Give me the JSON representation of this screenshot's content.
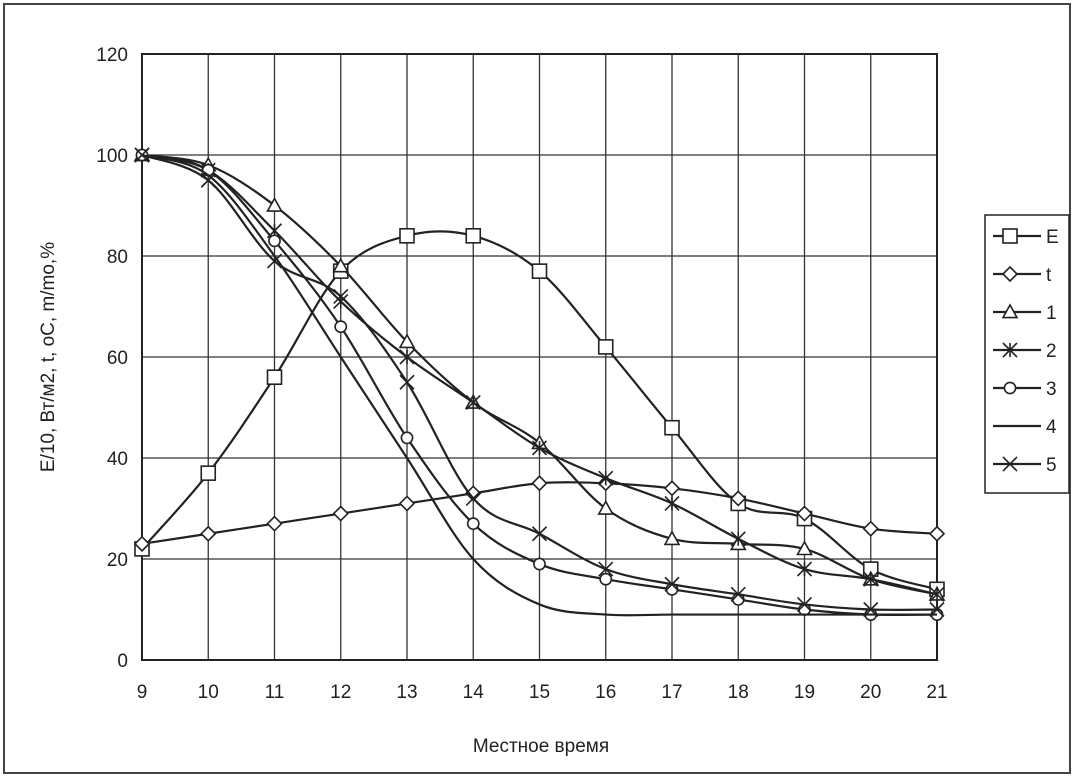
{
  "chart_data": {
    "type": "line",
    "title": "",
    "xlabel": "Местное время",
    "ylabel": "E/10, Вт/м2, t, оС, m/mo,%",
    "x": [
      9,
      10,
      11,
      12,
      13,
      14,
      15,
      16,
      17,
      18,
      19,
      20,
      21
    ],
    "xlim": [
      9,
      21
    ],
    "ylim": [
      0,
      120
    ],
    "y_ticks": [
      0,
      20,
      40,
      60,
      80,
      100,
      120
    ],
    "grid": true,
    "legend_position": "right",
    "series": [
      {
        "name": "E",
        "marker": "square",
        "values": [
          22,
          37,
          56,
          77,
          84,
          84,
          77,
          62,
          46,
          31,
          28,
          18,
          14
        ]
      },
      {
        "name": "t",
        "marker": "diamond",
        "values": [
          23,
          25,
          27,
          29,
          31,
          33,
          35,
          35,
          34,
          32,
          29,
          26,
          25
        ]
      },
      {
        "name": "1",
        "marker": "triangle",
        "values": [
          100,
          98,
          90,
          78,
          63,
          51,
          43,
          30,
          24,
          23,
          22,
          16,
          13
        ]
      },
      {
        "name": "2",
        "marker": "star",
        "values": [
          100,
          97,
          85,
          71,
          60,
          51,
          42,
          36,
          31,
          24,
          18,
          16,
          13
        ]
      },
      {
        "name": "3",
        "marker": "circle",
        "values": [
          100,
          97,
          83,
          66,
          44,
          27,
          19,
          16,
          14,
          12,
          10,
          9,
          9
        ]
      },
      {
        "name": "4",
        "marker": "none",
        "values": [
          100,
          96,
          80,
          60,
          40,
          20,
          11,
          9,
          9,
          9,
          9,
          9,
          9
        ]
      },
      {
        "name": "5",
        "marker": "x",
        "values": [
          100,
          95,
          79,
          72,
          55,
          32,
          25,
          18,
          15,
          13,
          11,
          10,
          10
        ]
      }
    ]
  }
}
